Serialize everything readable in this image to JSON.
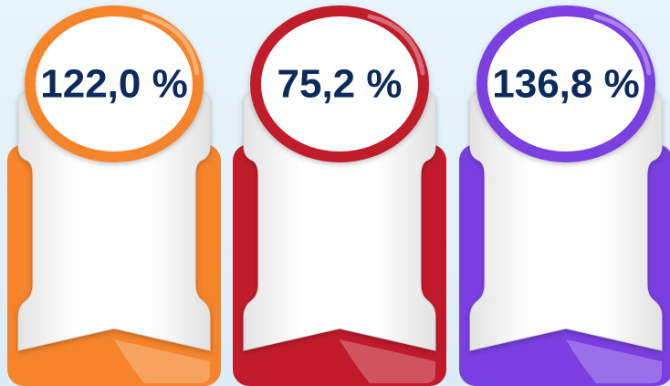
{
  "cards": [
    {
      "label": "122,0 %",
      "color": "#f5842b"
    },
    {
      "label": "75,2 %",
      "color": "#c11b2b"
    },
    {
      "label": "136,8 %",
      "color": "#7a3fe0"
    }
  ]
}
